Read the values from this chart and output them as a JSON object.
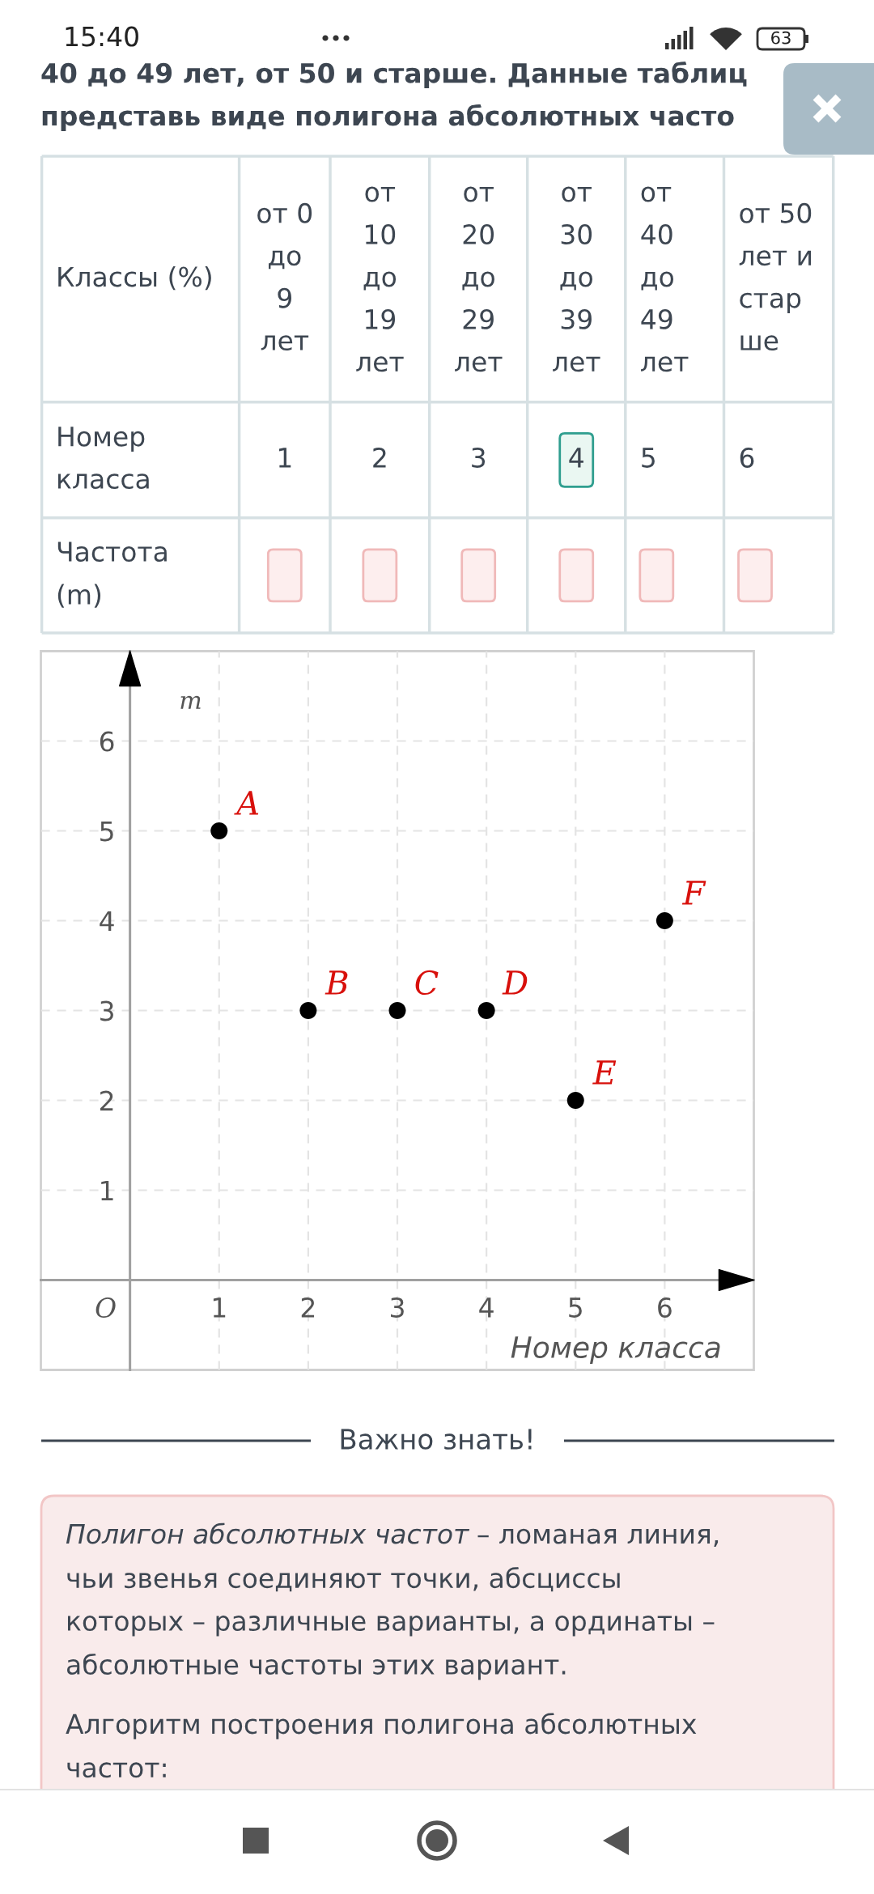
{
  "chart_data": {
    "type": "scatter",
    "title": "40 до 49 лет, от 50 и старше. Данные таблиц\nпредставь виде полигона абсолютных часто",
    "xlabel": "Номер класса",
    "ylabel": "m",
    "x": [
      1,
      2,
      3,
      4,
      5,
      6
    ],
    "values": [
      5,
      3,
      3,
      3,
      2,
      4
    ],
    "color": "#000000",
    "marker": "circle",
    "xlim": [
      -1,
      7
    ],
    "ylim": [
      -1,
      7
    ],
    "xticks": [
      1,
      2,
      3,
      4,
      5,
      6
    ],
    "yticks": [
      1,
      2,
      3,
      4,
      5,
      6
    ],
    "grid": true,
    "annotations": [
      {
        "text": "A",
        "x": 1,
        "y": 5
      },
      {
        "text": "B",
        "x": 2,
        "y": 3
      },
      {
        "text": "C",
        "x": 3,
        "y": 3
      },
      {
        "text": "D",
        "x": 4,
        "y": 3
      },
      {
        "text": "E",
        "x": 5,
        "y": 2
      },
      {
        "text": "F",
        "x": 6,
        "y": 4
      },
      "15:40",
      "63",
      "Классы (%)",
      "от 0\nдо\n9\nлет",
      "от\n10\nдо\n19\nлет",
      "от\n20\nдо\n29\nлет",
      "от\n30\nдо\n39\nлет",
      "от\n40\nдо\n49\nлет",
      "от 50\nлет и\nстар\nше",
      "Номер\nкласса",
      "1",
      "2",
      "3",
      "4",
      "5",
      "6",
      "Частота\n(m)",
      "Важно знать!",
      "Полигон абсолютных частот",
      "– ломаная линия,",
      "чьи звенья соединяют точки, абсциссы\nкоторых – различные варианты, а ординаты –\nабсолютные частоты этих вариант.",
      "Алгоритм построения полигона абсолютных\nчастот:",
      "O"
    ]
  }
}
